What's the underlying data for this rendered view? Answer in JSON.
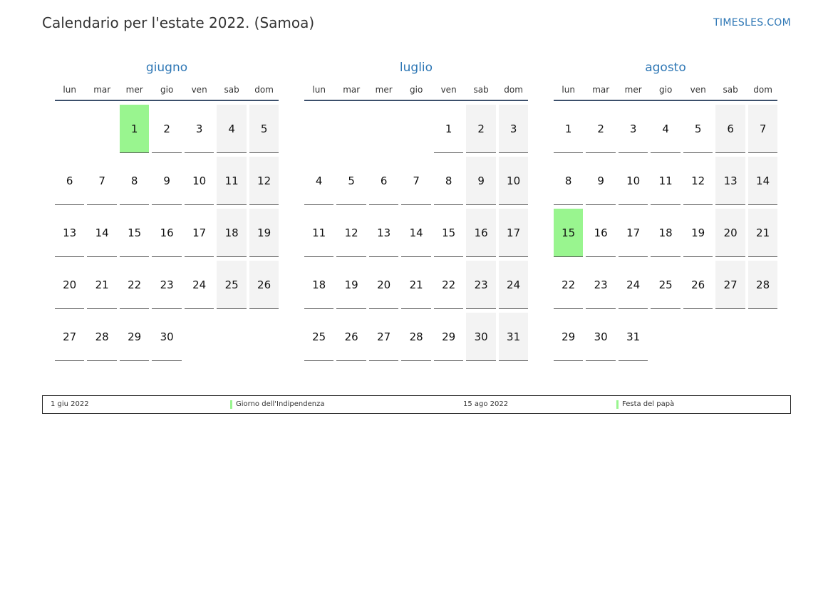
{
  "title": "Calendario per l'estate 2022. (Samoa)",
  "site": "TIMESLES.COM",
  "colors": {
    "accent": "#2e77b5",
    "holiday": "#99f58f",
    "weekend": "#f3f3f3"
  },
  "weekdays": [
    "lun",
    "mar",
    "mer",
    "gio",
    "ven",
    "sab",
    "dom"
  ],
  "months": [
    {
      "name": "giugno",
      "first_weekday": 2,
      "days": 30,
      "holidays": [
        1
      ]
    },
    {
      "name": "luglio",
      "first_weekday": 4,
      "days": 31,
      "holidays": []
    },
    {
      "name": "agosto",
      "first_weekday": 0,
      "days": 31,
      "holidays": [
        15
      ]
    }
  ],
  "legend": [
    {
      "date": "1 giu 2022",
      "name": "Giorno dell'Indipendenza"
    },
    {
      "date": "15 ago 2022",
      "name": "Festa del papà"
    }
  ]
}
